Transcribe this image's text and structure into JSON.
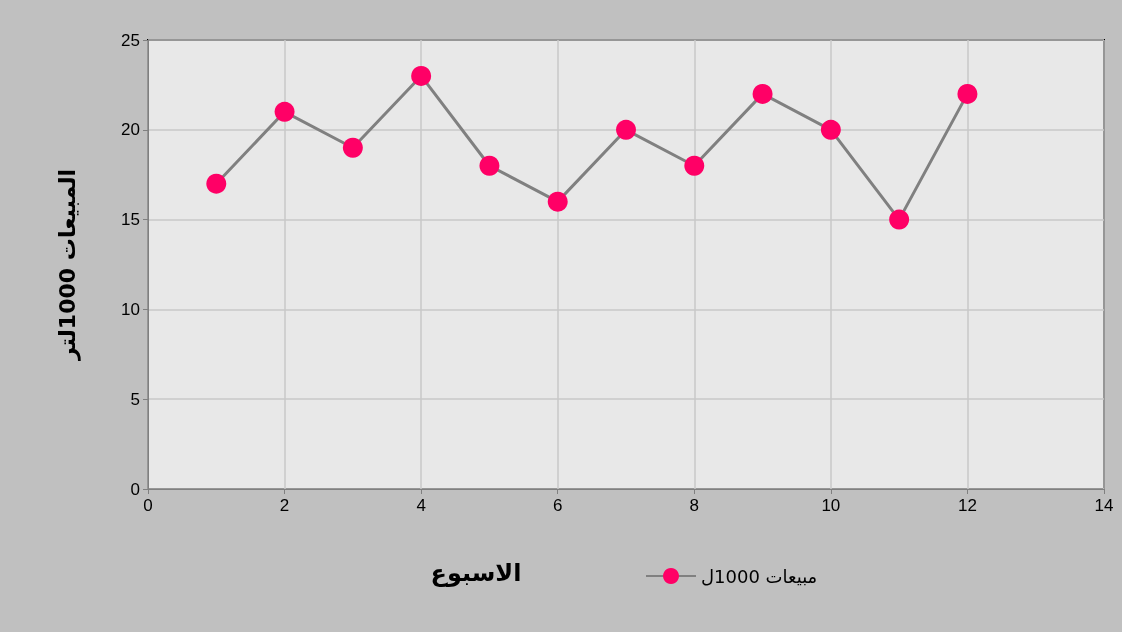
{
  "chart_data": {
    "type": "line",
    "xlabel": "الاسبوع",
    "ylabel": "المبيعات 1000لتر",
    "x": [
      1,
      2,
      3,
      4,
      5,
      6,
      7,
      8,
      9,
      10,
      11,
      12
    ],
    "series": [
      {
        "name": "مبيعات 1000ل",
        "color": "#ff0066",
        "values": [
          17,
          21,
          19,
          23,
          18,
          16,
          20,
          18,
          22,
          20,
          15,
          22
        ]
      }
    ],
    "xlim": [
      0,
      14
    ],
    "xticks": [
      0,
      2,
      4,
      6,
      8,
      10,
      12,
      14
    ],
    "ylim": [
      0,
      25
    ],
    "yticks": [
      0,
      5,
      10,
      15,
      20,
      25
    ],
    "grid": true,
    "legend": "bottom",
    "marker": "circle",
    "line_style": "solid"
  }
}
